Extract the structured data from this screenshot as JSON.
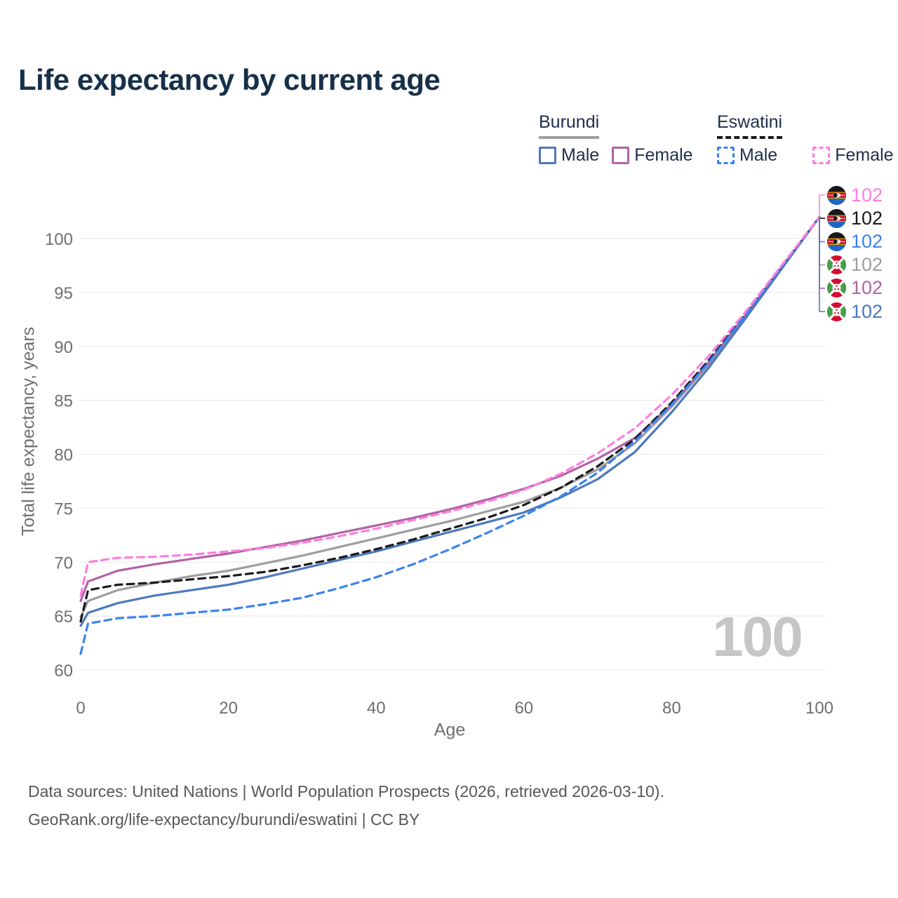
{
  "page": {
    "title": "Life expectancy by current age",
    "watermark_age": "100",
    "footer_line1": "Data sources: United Nations | World Population Prospects (2026, retrieved 2026-03-10).",
    "footer_line2": "GeoRank.org/life-expectancy/burundi/eswatini | CC BY"
  },
  "legend": {
    "groups": [
      {
        "country": "Burundi",
        "line_style": "solid",
        "underline_color": "#9e9e9e",
        "items": [
          {
            "label": "Male",
            "color": "#4d78bd"
          },
          {
            "label": "Female",
            "color": "#b164a5"
          }
        ]
      },
      {
        "country": "Eswatini",
        "line_style": "dashed",
        "underline_color": "#1a1a1a",
        "items": [
          {
            "label": "Male",
            "color": "#3b82f0"
          },
          {
            "label": "Female",
            "color": "#ff7ee0"
          }
        ]
      }
    ]
  },
  "chart_data": {
    "type": "line",
    "title": "Life expectancy by current age",
    "xlabel": "Age",
    "ylabel": "Total life expectancy, years",
    "xlim": [
      0,
      100
    ],
    "ylim": [
      60,
      103
    ],
    "x_ticks": [
      0,
      20,
      40,
      60,
      80,
      100
    ],
    "y_ticks": [
      60,
      65,
      70,
      75,
      80,
      85,
      90,
      95,
      100
    ],
    "grid": "horizontal",
    "legend_position": "top-right",
    "age_indicator": "100",
    "ages": [
      0,
      1,
      5,
      10,
      15,
      20,
      25,
      30,
      35,
      40,
      45,
      50,
      55,
      60,
      65,
      70,
      75,
      80,
      85,
      90,
      95,
      100
    ],
    "series": [
      {
        "name": "Burundi Both sexes",
        "country": "Burundi",
        "sex": "Both",
        "color": "#9e9e9e",
        "dash": false,
        "values": [
          64.9,
          66.4,
          67.4,
          68.1,
          68.7,
          69.2,
          69.9,
          70.6,
          71.4,
          72.2,
          73.0,
          73.8,
          74.7,
          75.6,
          76.9,
          78.6,
          81.0,
          84.4,
          88.3,
          92.8,
          97.4,
          102
        ]
      },
      {
        "name": "Burundi Female",
        "country": "Burundi",
        "sex": "Female",
        "color": "#b164a5",
        "dash": false,
        "values": [
          66.4,
          68.2,
          69.2,
          69.8,
          70.3,
          70.8,
          71.4,
          72.0,
          72.7,
          73.4,
          74.1,
          74.9,
          75.8,
          76.8,
          78.0,
          79.6,
          81.5,
          84.6,
          88.5,
          92.9,
          97.4,
          102
        ]
      },
      {
        "name": "Burundi Male",
        "country": "Burundi",
        "sex": "Male",
        "color": "#4d78bd",
        "dash": false,
        "values": [
          64.1,
          65.3,
          66.2,
          66.9,
          67.4,
          67.9,
          68.6,
          69.4,
          70.2,
          71.0,
          71.9,
          72.8,
          73.7,
          74.6,
          76.0,
          77.7,
          80.2,
          83.9,
          88.0,
          92.6,
          97.3,
          102
        ]
      },
      {
        "name": "Eswatini Both sexes",
        "country": "Eswatini",
        "sex": "Both",
        "color": "#1a1a1a",
        "dash": true,
        "values": [
          64.5,
          67.4,
          67.9,
          68.1,
          68.4,
          68.7,
          69.1,
          69.7,
          70.4,
          71.2,
          72.1,
          73.1,
          74.1,
          75.3,
          76.9,
          78.9,
          81.4,
          84.8,
          88.7,
          93.0,
          97.5,
          102
        ]
      },
      {
        "name": "Eswatini Male",
        "country": "Eswatini",
        "sex": "Male",
        "color": "#3b82f0",
        "dash": true,
        "values": [
          61.5,
          64.3,
          64.8,
          65.0,
          65.3,
          65.6,
          66.1,
          66.7,
          67.6,
          68.6,
          69.8,
          71.2,
          72.7,
          74.3,
          76.1,
          78.3,
          81.2,
          84.6,
          88.5,
          92.9,
          97.5,
          102
        ]
      },
      {
        "name": "Eswatini Female",
        "country": "Eswatini",
        "sex": "Female",
        "color": "#ff7ee0",
        "dash": true,
        "values": [
          66.9,
          70.0,
          70.4,
          70.5,
          70.7,
          71.0,
          71.3,
          71.8,
          72.4,
          73.1,
          73.9,
          74.7,
          75.6,
          76.7,
          78.2,
          80.1,
          82.4,
          85.5,
          89.1,
          93.2,
          97.6,
          102
        ]
      }
    ],
    "end_labels": [
      {
        "value": "102",
        "country": "Eswatini",
        "series": "Eswatini Female",
        "color": "#ff7ee0"
      },
      {
        "value": "102",
        "country": "Eswatini",
        "series": "Eswatini Both sexes",
        "color": "#1a1a1a"
      },
      {
        "value": "102",
        "country": "Eswatini",
        "series": "Eswatini Male",
        "color": "#3b82f0"
      },
      {
        "value": "102",
        "country": "Burundi",
        "series": "Burundi Both sexes",
        "color": "#9e9e9e"
      },
      {
        "value": "102",
        "country": "Burundi",
        "series": "Burundi Female",
        "color": "#b164a5"
      },
      {
        "value": "102",
        "country": "Burundi",
        "series": "Burundi Male",
        "color": "#4d78bd"
      }
    ]
  }
}
